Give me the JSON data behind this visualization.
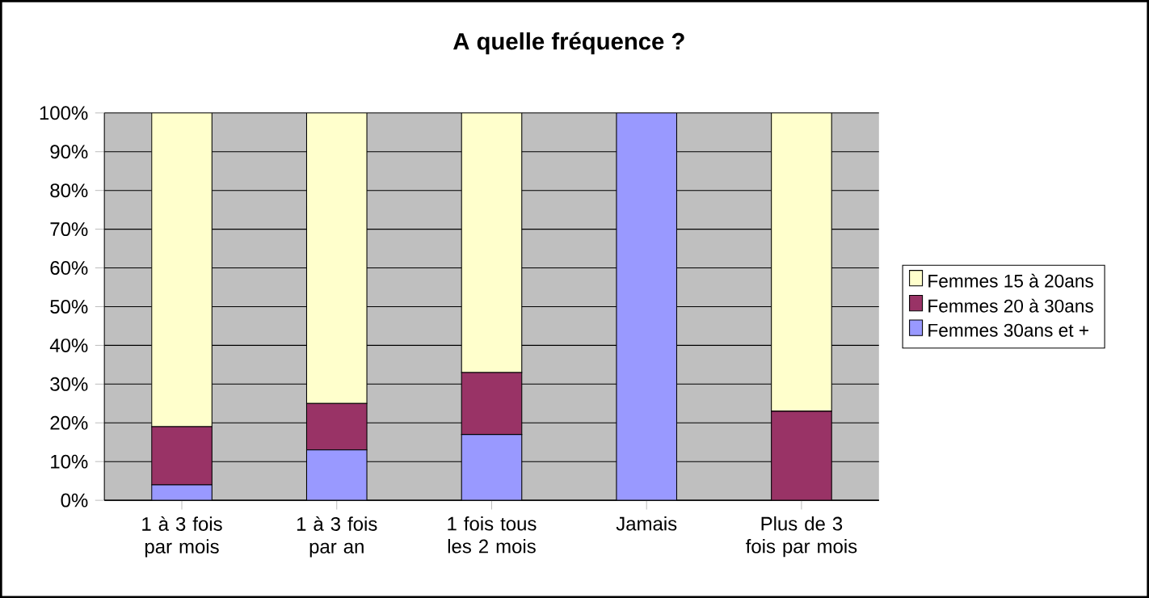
{
  "chart_data": {
    "type": "bar",
    "title": "A quelle fréquence ?",
    "stacked": true,
    "categories": [
      "1 à 3 fois par mois",
      "1 à 3 fois par an",
      "1 fois tous les 2 mois",
      "Jamais",
      "Plus de 3 fois par mois"
    ],
    "series": [
      {
        "name": "Femmes 30ans et +",
        "color": "#9999ff",
        "values": [
          4,
          13,
          17,
          100,
          0
        ]
      },
      {
        "name": "Femmes 20 à 30ans",
        "color": "#993366",
        "values": [
          15,
          12,
          16,
          0,
          23
        ]
      },
      {
        "name": "Femmes 15 à 20ans",
        "color": "#ffffcc",
        "values": [
          81,
          75,
          67,
          0,
          77
        ]
      }
    ],
    "ylim": [
      0,
      100
    ],
    "yticks": [
      {
        "value": 0,
        "label": "0%"
      },
      {
        "value": 10,
        "label": "10%"
      },
      {
        "value": 20,
        "label": "20%"
      },
      {
        "value": 30,
        "label": "30%"
      },
      {
        "value": 40,
        "label": "40%"
      },
      {
        "value": 50,
        "label": "50%"
      },
      {
        "value": 60,
        "label": "60%"
      },
      {
        "value": 70,
        "label": "70%"
      },
      {
        "value": 80,
        "label": "80%"
      },
      {
        "value": 90,
        "label": "90%"
      },
      {
        "value": 100,
        "label": "100%"
      }
    ],
    "grid": "y",
    "legend": "right"
  }
}
